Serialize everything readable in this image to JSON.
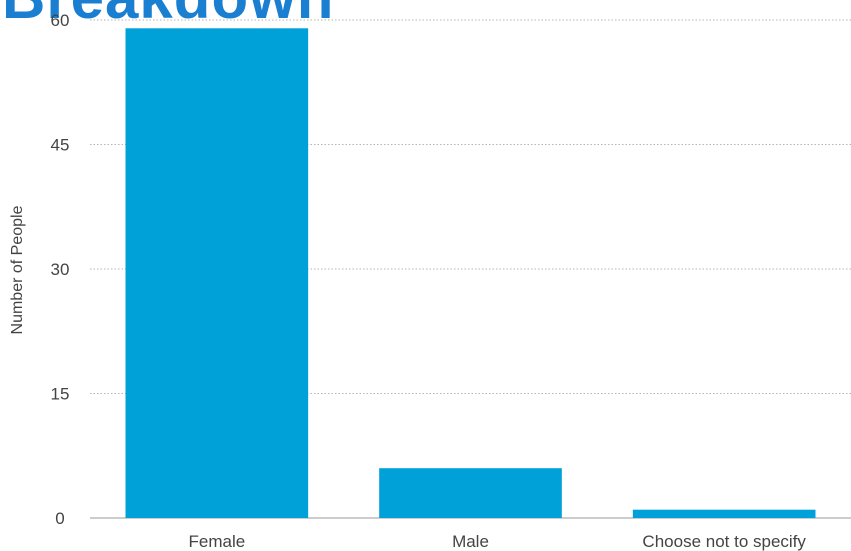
{
  "chart_data": {
    "type": "bar",
    "title": "Breakdown",
    "categories": [
      "Female",
      "Male",
      "Choose not to specify"
    ],
    "values": [
      59,
      6,
      1
    ],
    "ylabel": "Number of People",
    "xlabel": "",
    "ylim": [
      0,
      60
    ],
    "yticks": [
      0,
      15,
      30,
      45,
      60
    ],
    "grid": true,
    "bar_color": "#00a0d8",
    "title_color": "#1b7fd1"
  }
}
